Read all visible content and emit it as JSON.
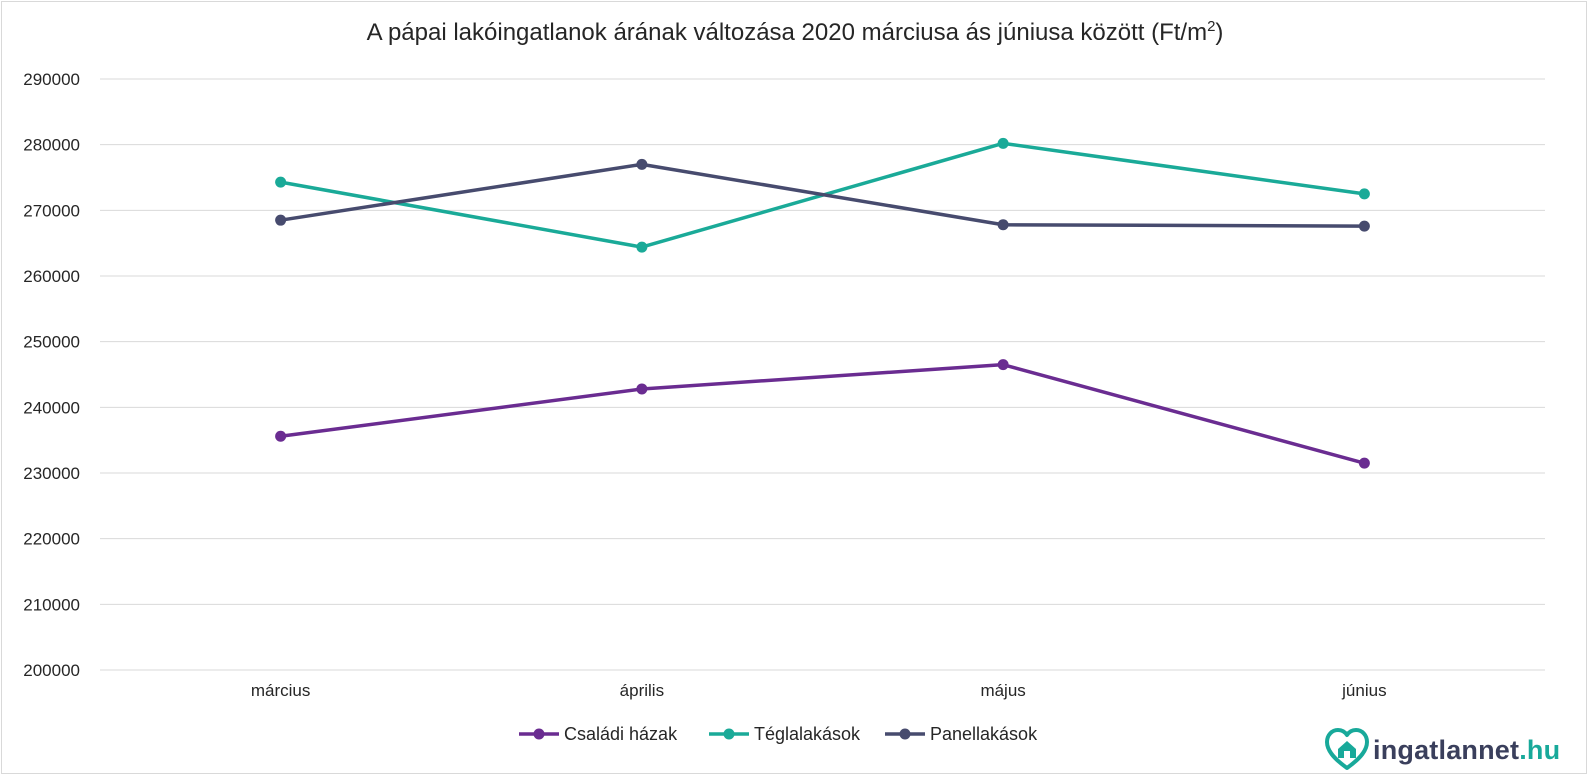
{
  "chart_data": {
    "type": "line",
    "title": "A pápai lakóingatlanok árának változása 2020 márciusa ás júniusa között (Ft/m",
    "title_superscript": "2",
    "title_suffix": ")",
    "categories": [
      "március",
      "április",
      "május",
      "június"
    ],
    "series": [
      {
        "name": "Családi házak",
        "color": "#6a2c91",
        "values": [
          235600,
          242800,
          246500,
          231500
        ]
      },
      {
        "name": "Téglalakások",
        "color": "#1aaa98",
        "values": [
          274300,
          264400,
          280200,
          272500
        ]
      },
      {
        "name": "Panellakások",
        "color": "#474b6e",
        "values": [
          268500,
          277000,
          267800,
          267600
        ]
      }
    ],
    "ylim": [
      200000,
      290000
    ],
    "yticks": [
      "200000",
      "210000",
      "220000",
      "230000",
      "240000",
      "250000",
      "260000",
      "270000",
      "280000",
      "290000"
    ],
    "xlabel": "",
    "ylabel": "",
    "grid": true,
    "legend_position": "bottom"
  },
  "branding": {
    "logo_name": "ingatlannet",
    "logo_domain": ".hu",
    "accent": "#18a99a",
    "text_color": "#3a3f5c"
  }
}
